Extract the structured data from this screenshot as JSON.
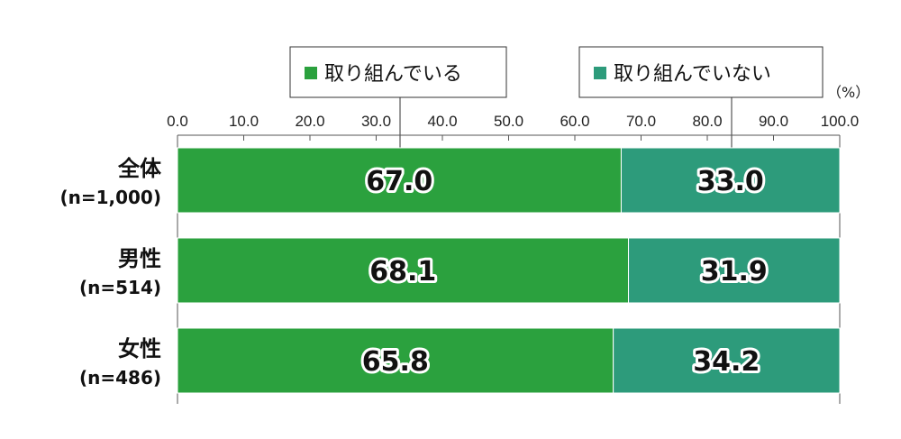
{
  "chart_data": {
    "type": "bar",
    "orientation": "horizontal",
    "stacked": true,
    "unit_label": "（%）",
    "xlim": [
      0,
      100
    ],
    "x_ticks": [
      "0.0",
      "10.0",
      "20.0",
      "30.0",
      "40.0",
      "50.0",
      "60.0",
      "70.0",
      "80.0",
      "90.0",
      "100.0"
    ],
    "categories": [
      {
        "name": "全体",
        "n": "(n=1,000)"
      },
      {
        "name": "男性",
        "n": "(n=514)"
      },
      {
        "name": "女性",
        "n": "(n=486)"
      }
    ],
    "series": [
      {
        "name": "取り組んでいる",
        "color": "#2ba13e",
        "values": [
          67.0,
          68.1,
          65.8
        ],
        "labels": [
          "67.0",
          "68.1",
          "65.8"
        ]
      },
      {
        "name": "取り組んでいない",
        "color": "#2d9b7b",
        "values": [
          33.0,
          31.9,
          34.2
        ],
        "labels": [
          "33.0",
          "31.9",
          "34.2"
        ]
      }
    ],
    "legend": "top (callout boxes)",
    "grid": false
  }
}
